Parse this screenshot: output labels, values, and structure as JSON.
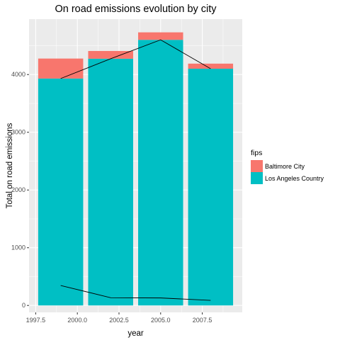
{
  "chart_data": {
    "type": "bar",
    "title": "On road emissions evolution by city",
    "xlabel": "year",
    "ylabel": "Total on road emissions",
    "x": [
      1999,
      2002,
      2005,
      2008
    ],
    "xlim": [
      1997.1,
      2009.9
    ],
    "ylim": [
      -120,
      4960
    ],
    "x_ticks": [
      1997.5,
      2000.0,
      2002.5,
      2005.0,
      2007.5
    ],
    "x_tick_labels": [
      "1997.5",
      "2000.0",
      "2002.5",
      "2005.0",
      "2007.5"
    ],
    "y_ticks": [
      0,
      1000,
      2000,
      3000,
      4000
    ],
    "y_tick_labels": [
      "0",
      "1000",
      "2000",
      "3000",
      "4000"
    ],
    "stacked": true,
    "bar_width_years": 2.7,
    "series": [
      {
        "name": "Los Angeles Country",
        "color": "#00BFC4",
        "values": [
          3931,
          4274,
          4601,
          4101
        ]
      },
      {
        "name": "Baltimore City",
        "color": "#F8766D",
        "values": [
          346,
          134,
          130,
          88
        ]
      }
    ],
    "overlay_lines": [
      {
        "name": "Los Angeles Country",
        "values": [
          3931,
          4274,
          4601,
          4101
        ]
      },
      {
        "name": "Baltimore City",
        "values": [
          346,
          134,
          130,
          88
        ]
      }
    ],
    "legend": {
      "title": "fips",
      "position": "right",
      "entries": [
        {
          "label": "Baltimore City",
          "color": "#F8766D"
        },
        {
          "label": "Los Angeles Country",
          "color": "#00BFC4"
        }
      ]
    },
    "grid": true,
    "panel_background": "#EBEBEB",
    "grid_color": "#FFFFFF"
  }
}
